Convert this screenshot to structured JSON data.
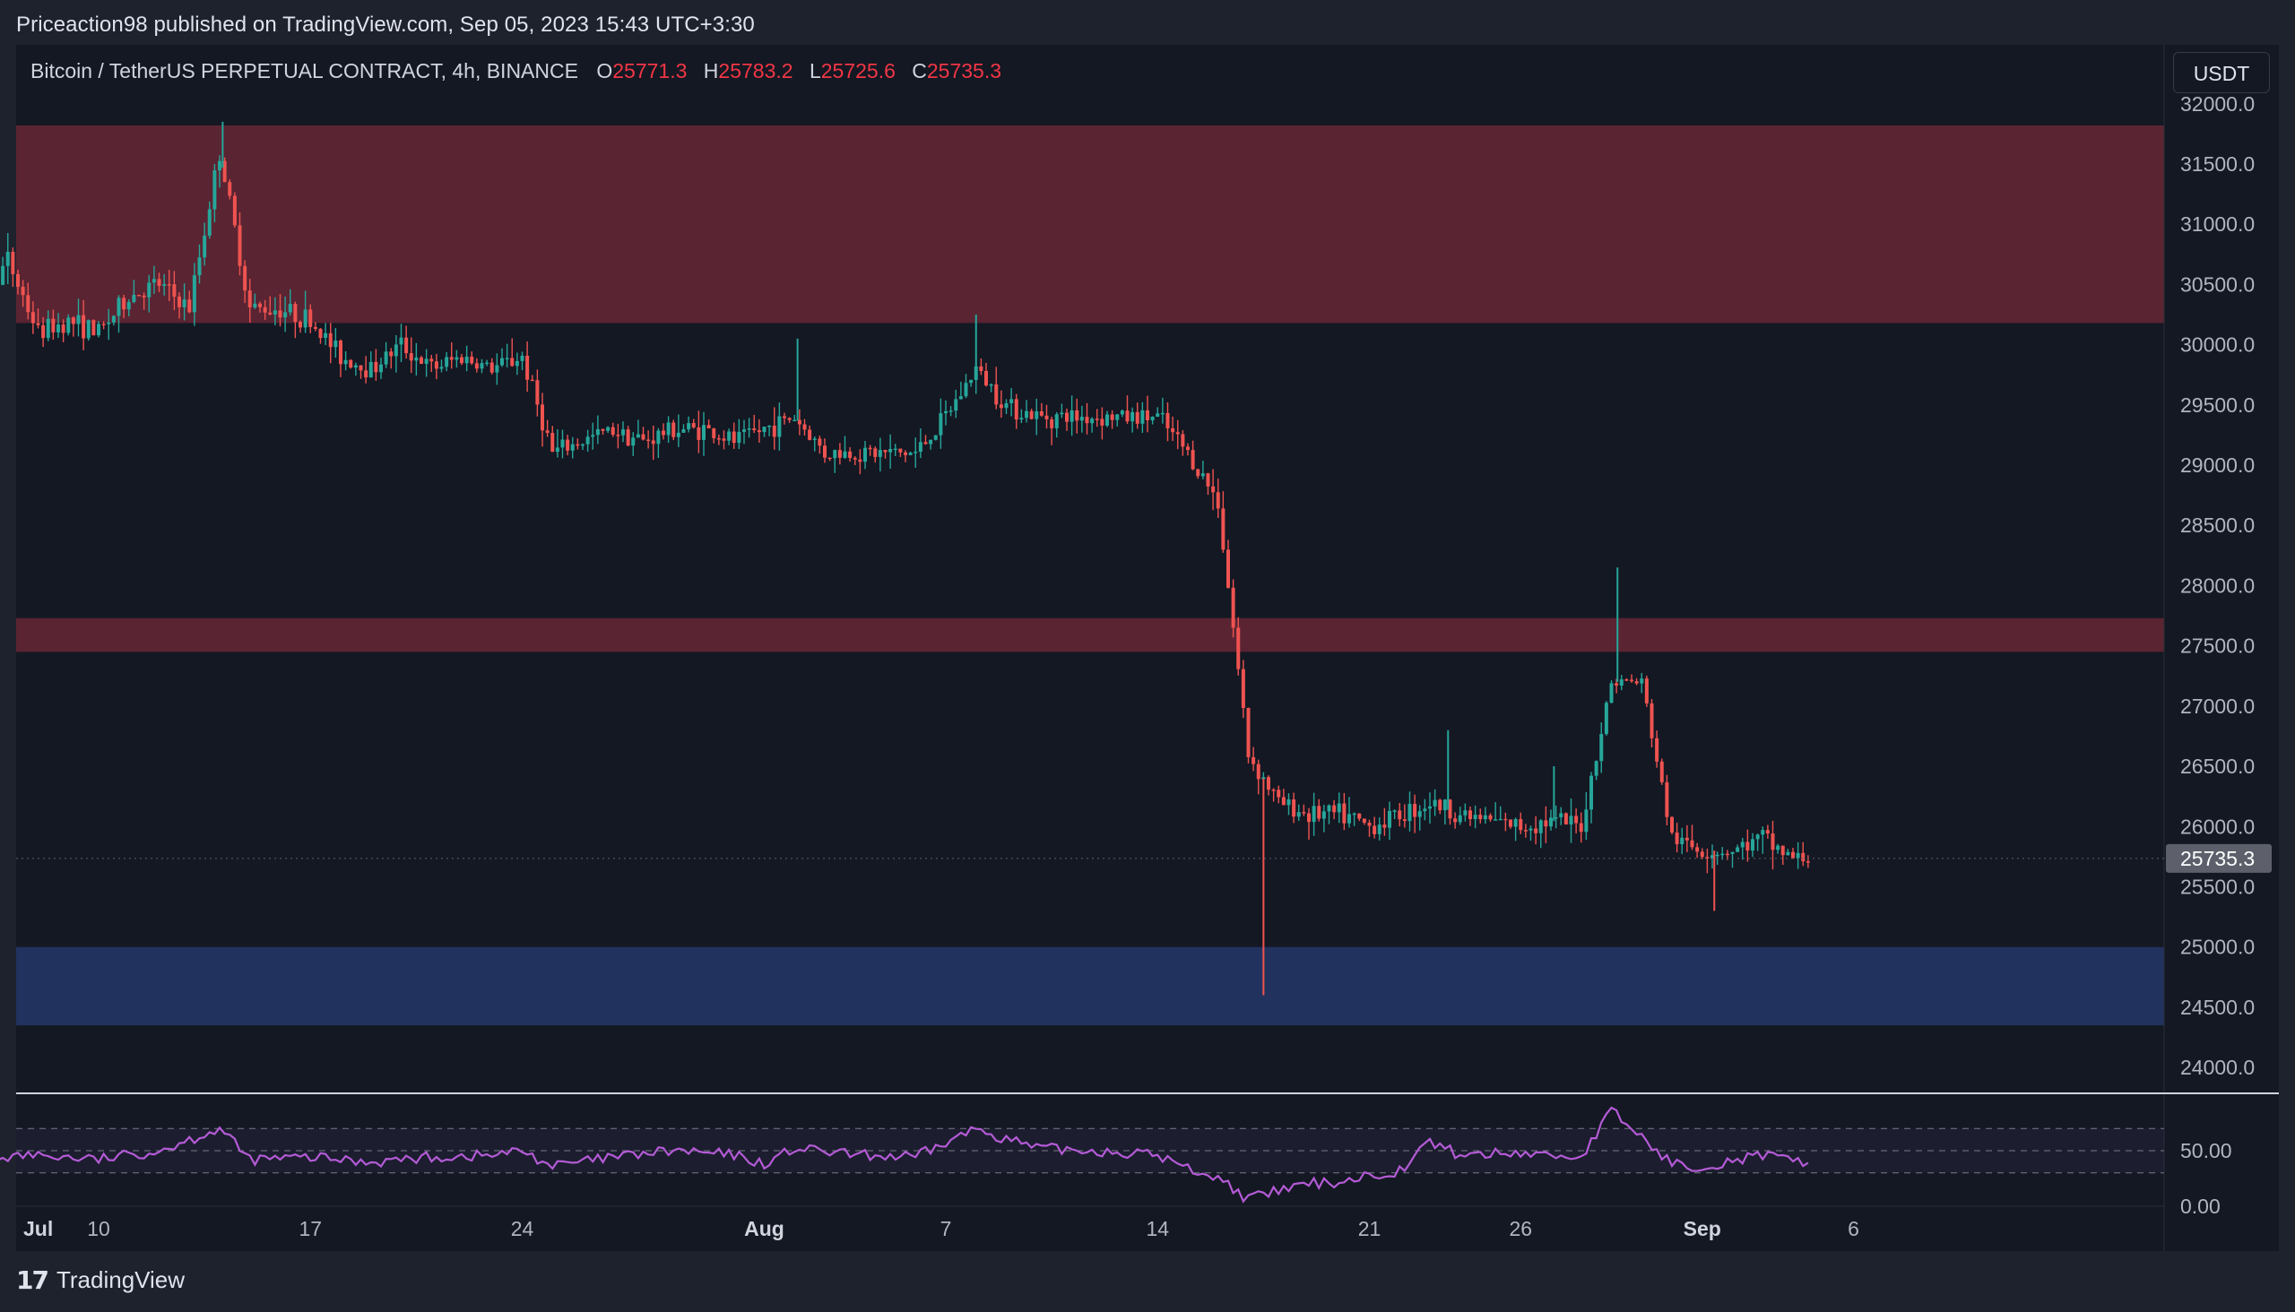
{
  "publisher": {
    "text": "Priceaction98 published on TradingView.com, Sep 05, 2023 15:43 UTC+3:30"
  },
  "legend": {
    "symbol": "Bitcoin / TetherUS PERPETUAL CONTRACT, 4h, BINANCE",
    "o_label": "O",
    "o_value": "25771.3",
    "h_label": "H",
    "h_value": "25783.2",
    "l_label": "L",
    "l_value": "25725.6",
    "c_label": "C",
    "c_value": "25735.3"
  },
  "currency_button": "USDT",
  "last_price_label": "25735.3",
  "footer": {
    "brand": "TradingView",
    "logo_mark": "17"
  },
  "colors": {
    "up": "#26a69a",
    "down": "#ef5350",
    "resistance_zone": "#5a2432",
    "support_zone": "#22325e",
    "rsi_line": "#b45bd6",
    "price_tag": "#5d606b"
  },
  "chart_data": {
    "type": "candlestick",
    "timeframe": "4h",
    "y_axis": {
      "ylim": [
        23800,
        32400
      ],
      "ticks": [
        "32000.0",
        "31500.0",
        "31000.0",
        "30500.0",
        "30000.0",
        "29500.0",
        "29000.0",
        "28500.0",
        "28000.0",
        "27500.0",
        "27000.0",
        "26500.0",
        "26000.0",
        "25500.0",
        "25000.0",
        "24500.0",
        "24000.0"
      ]
    },
    "x_axis": {
      "ticks": [
        {
          "label": "Jul",
          "day": 0,
          "bold": true
        },
        {
          "label": "10",
          "day": 9,
          "bold": false
        },
        {
          "label": "17",
          "day": 16,
          "bold": false
        },
        {
          "label": "24",
          "day": 23,
          "bold": false
        },
        {
          "label": "Aug",
          "day": 31,
          "bold": true
        },
        {
          "label": "7",
          "day": 37,
          "bold": false
        },
        {
          "label": "14",
          "day": 44,
          "bold": false
        },
        {
          "label": "21",
          "day": 51,
          "bold": false
        },
        {
          "label": "26",
          "day": 56,
          "bold": false
        },
        {
          "label": "Sep",
          "day": 62,
          "bold": true
        },
        {
          "label": "6",
          "day": 67,
          "bold": false
        }
      ]
    },
    "zones": [
      {
        "type": "resistance",
        "low": 30180,
        "high": 31820
      },
      {
        "type": "resistance",
        "low": 27450,
        "high": 27730
      },
      {
        "type": "support",
        "low": 24350,
        "high": 25000
      }
    ],
    "price_path": [
      {
        "day": 0,
        "price": 30600
      },
      {
        "day": 1,
        "price": 30500
      },
      {
        "day": 2,
        "price": 30500
      },
      {
        "day": 3,
        "price": 31000
      },
      {
        "day": 4,
        "price": 30900
      },
      {
        "day": 5,
        "price": 30300
      },
      {
        "day": 6,
        "price": 30700
      },
      {
        "day": 7,
        "price": 30100
      },
      {
        "day": 8,
        "price": 30200
      },
      {
        "day": 9,
        "price": 30100
      },
      {
        "day": 10,
        "price": 30400
      },
      {
        "day": 11,
        "price": 30500
      },
      {
        "day": 12,
        "price": 30300
      },
      {
        "day": 13,
        "price": 31600
      },
      {
        "day": 14,
        "price": 30300
      },
      {
        "day": 15,
        "price": 30300
      },
      {
        "day": 16,
        "price": 30200
      },
      {
        "day": 17,
        "price": 29900
      },
      {
        "day": 18,
        "price": 29800
      },
      {
        "day": 19,
        "price": 30000
      },
      {
        "day": 20,
        "price": 29800
      },
      {
        "day": 21,
        "price": 29900
      },
      {
        "day": 22,
        "price": 29800
      },
      {
        "day": 23,
        "price": 29900
      },
      {
        "day": 24,
        "price": 29100
      },
      {
        "day": 25,
        "price": 29200
      },
      {
        "day": 26,
        "price": 29300
      },
      {
        "day": 27,
        "price": 29200
      },
      {
        "day": 28,
        "price": 29300
      },
      {
        "day": 29,
        "price": 29300
      },
      {
        "day": 30,
        "price": 29200
      },
      {
        "day": 31,
        "price": 29300
      },
      {
        "day": 32,
        "price": 29400
      },
      {
        "day": 33,
        "price": 29100
      },
      {
        "day": 34,
        "price": 29100
      },
      {
        "day": 35,
        "price": 29100
      },
      {
        "day": 36,
        "price": 29100
      },
      {
        "day": 37,
        "price": 29400
      },
      {
        "day": 38,
        "price": 29800
      },
      {
        "day": 39,
        "price": 29500
      },
      {
        "day": 40,
        "price": 29400
      },
      {
        "day": 41,
        "price": 29400
      },
      {
        "day": 42,
        "price": 29400
      },
      {
        "day": 43,
        "price": 29400
      },
      {
        "day": 44,
        "price": 29400
      },
      {
        "day": 45,
        "price": 29100
      },
      {
        "day": 46,
        "price": 28700
      },
      {
        "day": 47,
        "price": 26600
      },
      {
        "day": 48,
        "price": 26200
      },
      {
        "day": 49,
        "price": 26100
      },
      {
        "day": 50,
        "price": 26100
      },
      {
        "day": 51,
        "price": 26000
      },
      {
        "day": 52,
        "price": 26100
      },
      {
        "day": 53,
        "price": 26200
      },
      {
        "day": 54,
        "price": 26100
      },
      {
        "day": 55,
        "price": 26050
      },
      {
        "day": 56,
        "price": 26000
      },
      {
        "day": 57,
        "price": 26050
      },
      {
        "day": 58,
        "price": 26000
      },
      {
        "day": 59,
        "price": 27200
      },
      {
        "day": 60,
        "price": 27200
      },
      {
        "day": 61,
        "price": 25900
      },
      {
        "day": 62,
        "price": 25800
      },
      {
        "day": 63,
        "price": 25800
      },
      {
        "day": 64,
        "price": 25900
      },
      {
        "day": 65,
        "price": 25735
      }
    ],
    "spikes": [
      {
        "day": 13.1,
        "price": 31850
      },
      {
        "day": 47.5,
        "price": 24600
      },
      {
        "day": 57.1,
        "price": 26500
      },
      {
        "day": 59.2,
        "price": 28150
      },
      {
        "day": 53.6,
        "price": 26800
      },
      {
        "day": 38.0,
        "price": 30250
      },
      {
        "day": 32.1,
        "price": 30050
      },
      {
        "day": 62.4,
        "price": 25300
      }
    ],
    "rsi": {
      "ylim": [
        0,
        100
      ],
      "ticks": [
        "50.00",
        "0.00"
      ],
      "upper_band": 70,
      "lower_band": 30,
      "values": [
        {
          "day": 0,
          "value": 48
        },
        {
          "day": 3,
          "value": 68
        },
        {
          "day": 5,
          "value": 44
        },
        {
          "day": 7,
          "value": 46
        },
        {
          "day": 9,
          "value": 42
        },
        {
          "day": 11,
          "value": 50
        },
        {
          "day": 13,
          "value": 70
        },
        {
          "day": 14,
          "value": 42
        },
        {
          "day": 16,
          "value": 44
        },
        {
          "day": 18,
          "value": 40
        },
        {
          "day": 20,
          "value": 44
        },
        {
          "day": 22,
          "value": 46
        },
        {
          "day": 23,
          "value": 50
        },
        {
          "day": 24,
          "value": 36
        },
        {
          "day": 26,
          "value": 44
        },
        {
          "day": 28,
          "value": 50
        },
        {
          "day": 30,
          "value": 46
        },
        {
          "day": 31,
          "value": 38
        },
        {
          "day": 32,
          "value": 52
        },
        {
          "day": 34,
          "value": 46
        },
        {
          "day": 36,
          "value": 44
        },
        {
          "day": 38,
          "value": 70
        },
        {
          "day": 40,
          "value": 52
        },
        {
          "day": 42,
          "value": 50
        },
        {
          "day": 44,
          "value": 46
        },
        {
          "day": 45,
          "value": 34
        },
        {
          "day": 46,
          "value": 26
        },
        {
          "day": 47,
          "value": 6
        },
        {
          "day": 48,
          "value": 14
        },
        {
          "day": 49,
          "value": 20
        },
        {
          "day": 50,
          "value": 22
        },
        {
          "day": 51,
          "value": 28
        },
        {
          "day": 52,
          "value": 32
        },
        {
          "day": 53,
          "value": 58
        },
        {
          "day": 54,
          "value": 46
        },
        {
          "day": 56,
          "value": 48
        },
        {
          "day": 58,
          "value": 44
        },
        {
          "day": 59,
          "value": 86
        },
        {
          "day": 60,
          "value": 62
        },
        {
          "day": 61,
          "value": 38
        },
        {
          "day": 62,
          "value": 36
        },
        {
          "day": 64,
          "value": 46
        },
        {
          "day": 65,
          "value": 40
        }
      ]
    },
    "current_price": 25735.3
  }
}
